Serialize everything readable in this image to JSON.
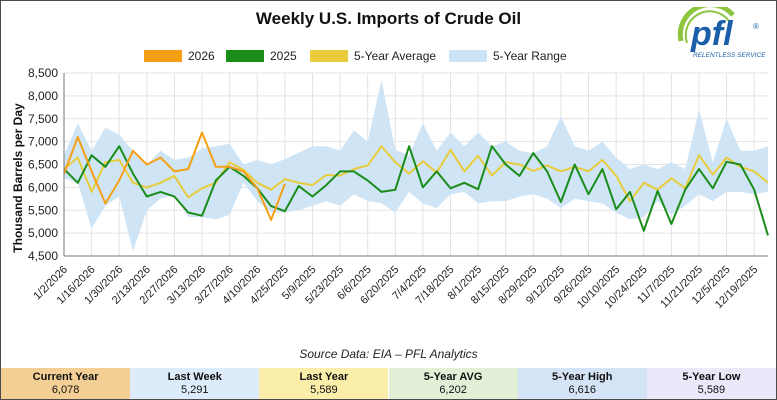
{
  "title": "Weekly U.S. Imports of Crude Oil",
  "source": "Source Data: EIA – PFL Analytics",
  "logo": {
    "text": "pfl",
    "tagline": "RELENTLESS SERVICE",
    "mark": "®"
  },
  "colors": {
    "y2026": "#f5a014",
    "y2025": "#1a8c1a",
    "avg": "#e8cc3c",
    "range": "#cce4f6"
  },
  "stats": [
    {
      "label": "Current Year",
      "value": "6,078",
      "color": "#f4cf95"
    },
    {
      "label": "Last Week",
      "value": "5,291",
      "color": "#dcecfa"
    },
    {
      "label": "Last Year",
      "value": "5,589",
      "color": "#fbeeaa"
    },
    {
      "label": "5-Year AVG",
      "value": "6,202",
      "color": "#e1f0d7"
    },
    {
      "label": "5-Year High",
      "value": "6,616",
      "color": "#d4e3f5"
    },
    {
      "label": "5-Year Low",
      "value": "5,589",
      "color": "#e9e9f9"
    }
  ],
  "chart_data": {
    "type": "line",
    "title": "Weekly U.S. Imports of Crude Oil",
    "xlabel": "",
    "ylabel": "Thousand Barrels per Day",
    "ylim": [
      4500,
      8500
    ],
    "yticks": [
      4500,
      5000,
      5500,
      6000,
      6500,
      7000,
      7500,
      8000,
      8500
    ],
    "ytick_labels": [
      "4,500",
      "5,000",
      "5,500",
      "6,000",
      "6,500",
      "7,000",
      "7,500",
      "8,000",
      "8,500"
    ],
    "xtick_labels": [
      "1/2/2026",
      "1/16/2026",
      "1/30/2026",
      "2/13/2026",
      "2/27/2026",
      "3/13/2026",
      "3/27/2026",
      "4/10/2026",
      "4/25/2025",
      "5/9/2025",
      "5/23/2025",
      "6/6/2025",
      "6/20/2025",
      "7/4/2025",
      "7/18/2025",
      "8/1/2025",
      "8/15/2025",
      "8/29/2025",
      "9/12/2025",
      "9/26/2025",
      "10/10/2025",
      "10/24/2025",
      "11/7/2025",
      "11/21/2025",
      "12/5/2025",
      "12/19/2025"
    ],
    "grid": true,
    "legend_position": "top",
    "weeks": 52,
    "series": [
      {
        "name": "2026",
        "values": [
          6300,
          7100,
          6350,
          5650,
          6150,
          6800,
          6500,
          6650,
          6350,
          6400,
          7200,
          6450,
          6450,
          6350,
          5980,
          5290,
          6078
        ]
      },
      {
        "name": "2025",
        "values": [
          6400,
          6100,
          6700,
          6450,
          6900,
          6300,
          5800,
          5900,
          5800,
          5450,
          5380,
          6150,
          6450,
          6250,
          5980,
          5590,
          5480,
          6030,
          5800,
          6050,
          6350,
          6350,
          6150,
          5900,
          5950,
          6900,
          6000,
          6350,
          5980,
          6100,
          5960,
          6900,
          6500,
          6250,
          6750,
          6350,
          5680,
          6500,
          5850,
          6400,
          5520,
          5900,
          5050,
          5920,
          5200,
          5950,
          6400,
          5980,
          6560,
          6500,
          5950,
          4950
        ]
      },
      {
        "name": "5-Year Average",
        "values": [
          6400,
          6650,
          5900,
          6550,
          6600,
          6100,
          6000,
          6100,
          6250,
          5780,
          5980,
          6100,
          6550,
          6380,
          6100,
          5950,
          6180,
          6100,
          6050,
          6270,
          6260,
          6400,
          6480,
          6900,
          6550,
          6300,
          6570,
          6320,
          6820,
          6350,
          6690,
          6260,
          6550,
          6500,
          6360,
          6480,
          6350,
          6450,
          6350,
          6600,
          6250,
          5700,
          6100,
          5950,
          6200,
          5980,
          6700,
          6280,
          6650,
          6450,
          6350,
          6100
        ]
      },
      {
        "name": "5-Year Range",
        "low": [
          6200,
          6100,
          5100,
          5600,
          5800,
          4600,
          5500,
          5750,
          5850,
          5350,
          5350,
          5300,
          5400,
          6100,
          5700,
          5450,
          5450,
          5500,
          5600,
          5700,
          5600,
          5850,
          5700,
          5650,
          5450,
          5900,
          5650,
          5550,
          5850,
          5900,
          5650,
          5700,
          5700,
          5800,
          5850,
          5750,
          5550,
          5750,
          5700,
          5650,
          5450,
          5300,
          5350,
          5700,
          5400,
          5600,
          5850,
          5700,
          5900,
          5900,
          5850,
          5900
        ],
        "high": [
          6700,
          7400,
          6800,
          7300,
          7150,
          6800,
          6500,
          6800,
          6600,
          6650,
          6850,
          6900,
          6950,
          6500,
          6600,
          6500,
          6620,
          6760,
          6900,
          6900,
          6800,
          7250,
          7000,
          8350,
          6820,
          6700,
          7400,
          6800,
          7200,
          6900,
          7200,
          6900,
          7000,
          6800,
          6750,
          6900,
          7550,
          6900,
          6800,
          7000,
          6650,
          6400,
          6500,
          6400,
          6550,
          6400,
          7700,
          6550,
          7500,
          6800,
          6800,
          6900
        ]
      }
    ]
  }
}
